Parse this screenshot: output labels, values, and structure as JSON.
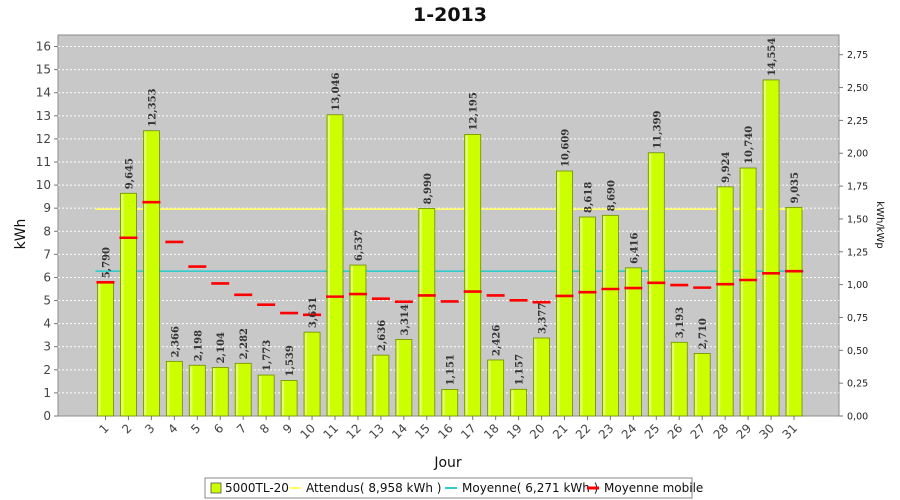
{
  "chart_data": {
    "type": "bar",
    "title": "1-2013",
    "xlabel": "Jour",
    "ylabel": "kWh",
    "y2label": "kWh/kWp",
    "ylim": [
      0,
      16.5
    ],
    "yticks": [
      0,
      1,
      2,
      3,
      4,
      5,
      6,
      7,
      8,
      9,
      10,
      11,
      12,
      13,
      14,
      15,
      16
    ],
    "y2lim": [
      0,
      2.9
    ],
    "y2ticks": [
      "0,00",
      "0,25",
      "0,50",
      "0,75",
      "1,00",
      "1,25",
      "1,50",
      "1,75",
      "2,00",
      "2,25",
      "2,50",
      "2,75"
    ],
    "grid": true,
    "legend_position": "bottom",
    "categories": [
      "1",
      "2",
      "3",
      "4",
      "5",
      "6",
      "7",
      "8",
      "9",
      "10",
      "11",
      "12",
      "13",
      "14",
      "15",
      "16",
      "17",
      "18",
      "19",
      "20",
      "21",
      "22",
      "23",
      "24",
      "25",
      "26",
      "27",
      "28",
      "29",
      "30",
      "31"
    ],
    "series": [
      {
        "name": "5000TL-20",
        "type": "bar",
        "color": "#ccff00",
        "values": [
          5.79,
          9.645,
          12.353,
          2.366,
          2.198,
          2.104,
          2.282,
          1.773,
          1.539,
          3.631,
          13.046,
          6.537,
          2.636,
          3.314,
          8.99,
          1.151,
          12.195,
          2.426,
          1.157,
          3.377,
          10.609,
          8.618,
          8.69,
          6.416,
          11.399,
          3.193,
          2.71,
          9.924,
          10.74,
          14.554,
          9.035
        ],
        "labels": [
          "5,790",
          "9,645",
          "12,353",
          "2,366",
          "2,198",
          "2,104",
          "2,282",
          "1,773",
          "1,539",
          "3,631",
          "13,046",
          "6,537",
          "2,636",
          "3,314",
          "8,990",
          "1,151",
          "12,195",
          "2,426",
          "1,157",
          "3,377",
          "10,609",
          "8,618",
          "8,690",
          "6,416",
          "11,399",
          "3,193",
          "2,710",
          "9,924",
          "10,740",
          "14,554",
          "9,035"
        ]
      },
      {
        "name": "Attendus( 8,958 kWh )",
        "type": "hline",
        "color": "#ffff66",
        "value": 8.958
      },
      {
        "name": "Moyenne( 6,271 kWh )",
        "type": "hline",
        "color": "#33cccc",
        "value": 6.271
      },
      {
        "name": "Moyenne mobile",
        "type": "marker",
        "color": "#ff0000",
        "values": [
          5.79,
          7.72,
          9.26,
          7.54,
          6.47,
          5.74,
          5.25,
          4.82,
          4.46,
          4.38,
          5.17,
          5.28,
          5.08,
          4.95,
          5.22,
          4.96,
          5.39,
          5.22,
          5.01,
          4.93,
          5.2,
          5.36,
          5.5,
          5.54,
          5.77,
          5.67,
          5.56,
          5.71,
          5.89,
          6.18,
          6.27
        ]
      }
    ]
  }
}
